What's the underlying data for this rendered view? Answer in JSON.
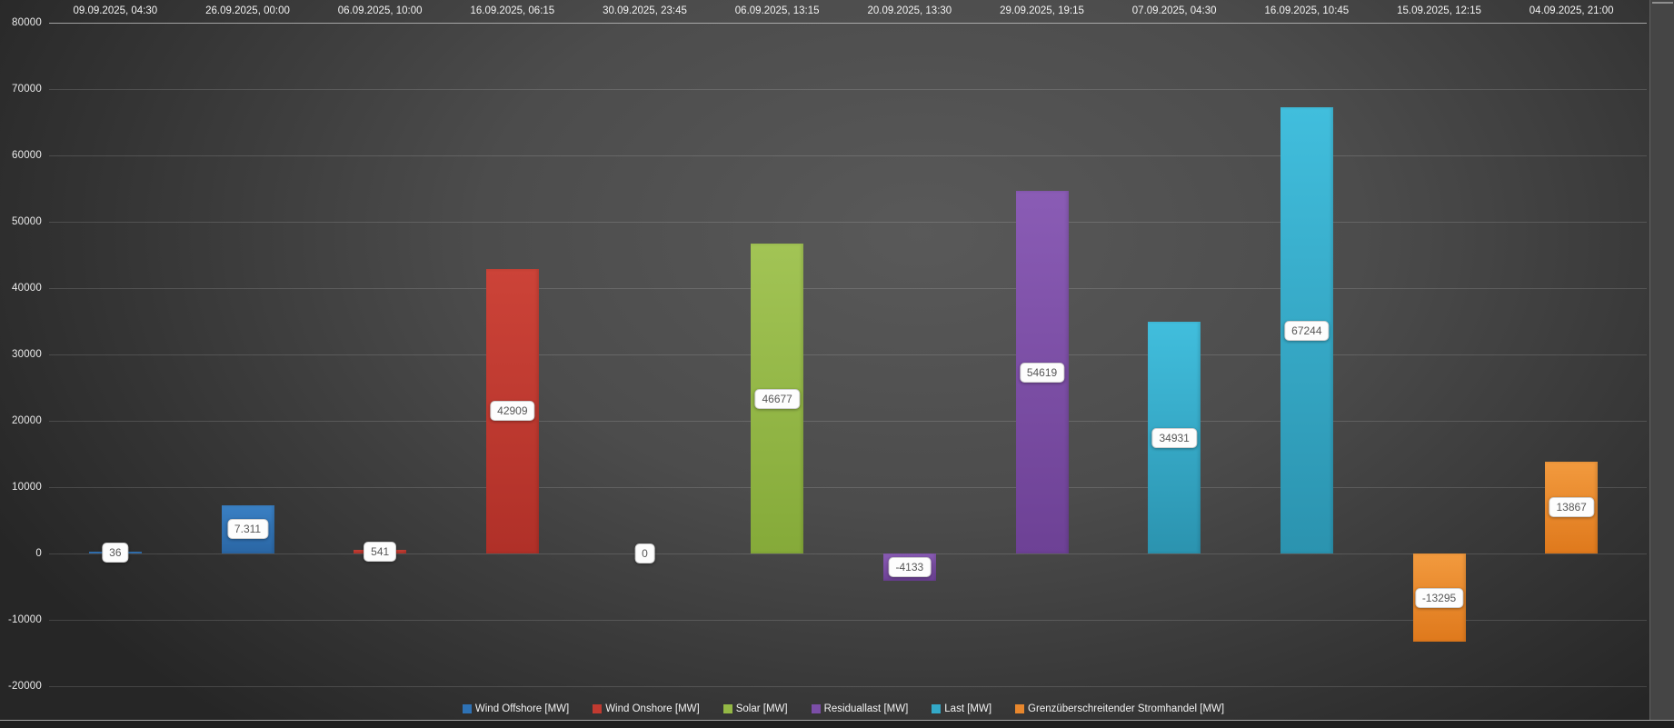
{
  "chart_data": {
    "type": "bar",
    "title": "",
    "xlabel": "",
    "ylabel": "",
    "legend_position": "bottom",
    "grid": true,
    "y_axis": {
      "min": -20000,
      "max": 80000,
      "step": 10000,
      "ticks": [
        "80000",
        "70000",
        "60000",
        "50000",
        "40000",
        "30000",
        "20000",
        "10000",
        "0",
        "-10000",
        "-20000"
      ]
    },
    "categories": [
      "09.09.2025, 04:30",
      "26.09.2025, 00:00",
      "06.09.2025, 10:00",
      "16.09.2025, 06:15",
      "30.09.2025, 23:45",
      "06.09.2025, 13:15",
      "20.09.2025, 13:30",
      "29.09.2025, 19:15",
      "07.09.2025, 04:30",
      "16.09.2025, 10:45",
      "15.09.2025, 12:15",
      "04.09.2025, 21:00"
    ],
    "series": [
      {
        "name": "Wind Offshore [MW]",
        "color": "#2e72b5",
        "color_top": "#3a80c4",
        "color_bottom": "#2a66a4"
      },
      {
        "name": "Wind Onshore [MW]",
        "color": "#c13a30",
        "color_top": "#cc4338",
        "color_bottom": "#b03028"
      },
      {
        "name": "Solar [MW]",
        "color": "#94b845",
        "color_top": "#a2c455",
        "color_bottom": "#85aa39"
      },
      {
        "name": "Residuallast [MW]",
        "color": "#7b4ea7",
        "color_top": "#8a5cb5",
        "color_bottom": "#6d4195"
      },
      {
        "name": "Last [MW]",
        "color": "#33a9c8",
        "color_top": "#41bedd",
        "color_bottom": "#2b93af"
      },
      {
        "name": "Grenzüberschreitender Stromhandel [MW]",
        "color": "#e8872d",
        "color_top": "#f29a3e",
        "color_bottom": "#df791c"
      }
    ],
    "points": [
      {
        "category": "09.09.2025, 04:30",
        "series": "Wind Offshore [MW]",
        "value": 36,
        "label": "36"
      },
      {
        "category": "26.09.2025, 00:00",
        "series": "Wind Offshore [MW]",
        "value": 7311,
        "label": "7.311"
      },
      {
        "category": "06.09.2025, 10:00",
        "series": "Wind Onshore [MW]",
        "value": 541,
        "label": "541"
      },
      {
        "category": "16.09.2025, 06:15",
        "series": "Wind Onshore [MW]",
        "value": 42909,
        "label": "42909"
      },
      {
        "category": "30.09.2025, 23:45",
        "series": "Solar [MW]",
        "value": 0,
        "label": "0"
      },
      {
        "category": "06.09.2025, 13:15",
        "series": "Solar [MW]",
        "value": 46677,
        "label": "46677"
      },
      {
        "category": "20.09.2025, 13:30",
        "series": "Residuallast [MW]",
        "value": -4133,
        "label": "-4133"
      },
      {
        "category": "29.09.2025, 19:15",
        "series": "Residuallast [MW]",
        "value": 54619,
        "label": "54619"
      },
      {
        "category": "07.09.2025, 04:30",
        "series": "Last [MW]",
        "value": 34931,
        "label": "34931"
      },
      {
        "category": "16.09.2025, 10:45",
        "series": "Last [MW]",
        "value": 67244,
        "label": "67244"
      },
      {
        "category": "15.09.2025, 12:15",
        "series": "Grenzüberschreitender Stromhandel [MW]",
        "value": -13295,
        "label": "-13295"
      },
      {
        "category": "04.09.2025, 21:00",
        "series": "Grenzüberschreitender Stromhandel [MW]",
        "value": 13867,
        "label": "13867"
      }
    ]
  }
}
